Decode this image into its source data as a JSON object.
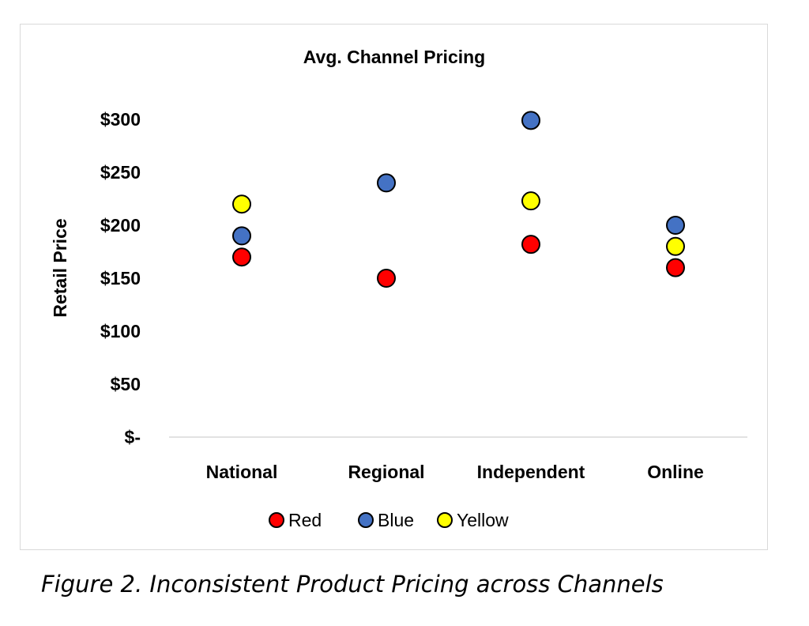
{
  "chart_data": {
    "type": "scatter",
    "title": "Avg. Channel Pricing",
    "ylabel": "Retail Price",
    "xlabel": "",
    "categories": [
      "National",
      "Regional",
      "Independent",
      "Online"
    ],
    "y_ticks": [
      {
        "value": 0,
        "label": "$-"
      },
      {
        "value": 50,
        "label": "$50"
      },
      {
        "value": 100,
        "label": "$100"
      },
      {
        "value": 150,
        "label": "$150"
      },
      {
        "value": 200,
        "label": "$200"
      },
      {
        "value": 250,
        "label": "$250"
      },
      {
        "value": 300,
        "label": "$300"
      }
    ],
    "ylim": [
      0,
      300
    ],
    "grid": false,
    "legend_position": "bottom",
    "series": [
      {
        "name": "Red",
        "color": "#ff0000",
        "values": [
          170,
          150,
          182,
          160
        ]
      },
      {
        "name": "Blue",
        "color": "#4472c4",
        "values": [
          190,
          240,
          299,
          200
        ]
      },
      {
        "name": "Yellow",
        "color": "#ffff00",
        "values": [
          220,
          null,
          223,
          180
        ]
      }
    ]
  },
  "caption": "Figure 2. Inconsistent Product Pricing across Channels"
}
